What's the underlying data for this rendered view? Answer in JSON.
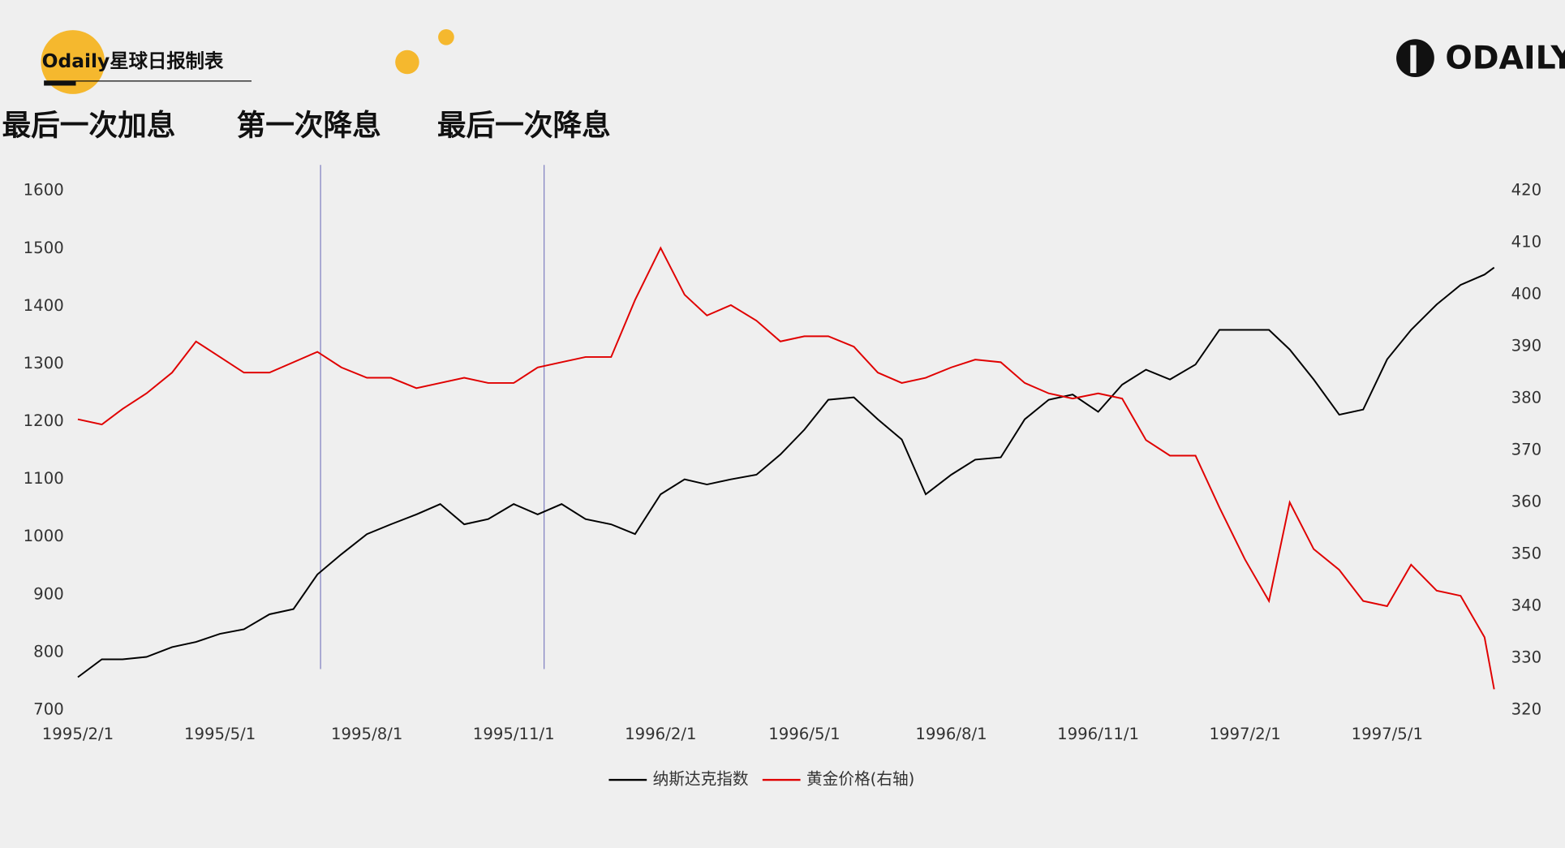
{
  "header": {
    "brand": "Odaily星球日报制表",
    "logo": "ODAILY"
  },
  "chart_data": {
    "type": "line",
    "annotations": [
      {
        "text": "最后一次加息"
      },
      {
        "text": "第一次降息",
        "x": "1995/7/3"
      },
      {
        "text": "最后一次降息",
        "x": "1995/11/20"
      }
    ],
    "x": [
      "1995/2/1",
      "1995/2/16",
      "1995/3/1",
      "1995/3/16",
      "1995/4/1",
      "1995/4/16",
      "1995/5/1",
      "1995/5/16",
      "1995/6/1",
      "1995/6/16",
      "1995/7/1",
      "1995/7/16",
      "1995/8/1",
      "1995/8/16",
      "1995/9/1",
      "1995/9/16",
      "1995/10/1",
      "1995/10/16",
      "1995/11/1",
      "1995/11/16",
      "1995/12/1",
      "1995/12/16",
      "1996/1/1",
      "1996/1/16",
      "1996/2/1",
      "1996/2/16",
      "1996/3/1",
      "1996/3/16",
      "1996/4/1",
      "1996/4/16",
      "1996/5/1",
      "1996/5/16",
      "1996/6/1",
      "1996/6/16",
      "1996/7/1",
      "1996/7/16",
      "1996/8/1",
      "1996/8/16",
      "1996/9/1",
      "1996/9/16",
      "1996/10/1",
      "1996/10/16",
      "1996/11/1",
      "1996/11/16",
      "1996/12/1",
      "1996/12/16",
      "1997/1/1",
      "1997/1/16",
      "1997/2/1",
      "1997/2/16",
      "1997/3/1",
      "1997/3/16",
      "1997/4/1",
      "1997/4/16",
      "1997/5/1",
      "1997/5/16",
      "1997/6/1",
      "1997/6/16",
      "1997/7/1",
      "1997/7/7"
    ],
    "series": [
      {
        "name": "纳斯达克指数",
        "color": "#000000",
        "values": [
          757,
          788,
          788,
          792,
          809,
          818,
          832,
          840,
          866,
          875,
          935,
          970,
          1005,
          1022,
          1039,
          1057,
          1022,
          1031,
          1057,
          1039,
          1057,
          1031,
          1022,
          1005,
          1074,
          1100,
          1091,
          1100,
          1108,
          1143,
          1186,
          1238,
          1242,
          1204,
          1169,
          1074,
          1108,
          1134,
          1138,
          1204,
          1238,
          1247,
          1217,
          1264,
          1290,
          1273,
          1299,
          1359,
          1359,
          1359,
          1325,
          1273,
          1212,
          1221,
          1308,
          1359,
          1403,
          1437,
          1455,
          1467
        ]
      },
      {
        "name": "黄金价格(右轴)",
        "color": "#e00000",
        "axis": "y2",
        "values": [
          376,
          375,
          378,
          381,
          385,
          391,
          388,
          385,
          385,
          387,
          389,
          386,
          384,
          384,
          382,
          383,
          384,
          383,
          383,
          386,
          387,
          388,
          388,
          399,
          409,
          400,
          396,
          398,
          395,
          391,
          392,
          392,
          390,
          385,
          383,
          384,
          386,
          387.5,
          387,
          383,
          381,
          380,
          381,
          380,
          372,
          369,
          369,
          359,
          349,
          341,
          360,
          351,
          347,
          341,
          340,
          348,
          343,
          342,
          334,
          324
        ]
      }
    ],
    "xlim": [
      "1995/2/1",
      "1997/7/7"
    ],
    "xticks": [
      "1995/2/1",
      "1995/5/1",
      "1995/8/1",
      "1995/11/1",
      "1996/2/1",
      "1996/5/1",
      "1996/8/1",
      "1996/11/1",
      "1997/2/1",
      "1997/5/1"
    ],
    "ylim": [
      700,
      1600
    ],
    "yticks": [
      700,
      800,
      900,
      1000,
      1100,
      1200,
      1300,
      1400,
      1500,
      1600
    ],
    "y2lim": [
      320,
      420
    ],
    "y2ticks": [
      320,
      330,
      340,
      350,
      360,
      370,
      380,
      390,
      400,
      410,
      420
    ],
    "legend": "bottom"
  }
}
